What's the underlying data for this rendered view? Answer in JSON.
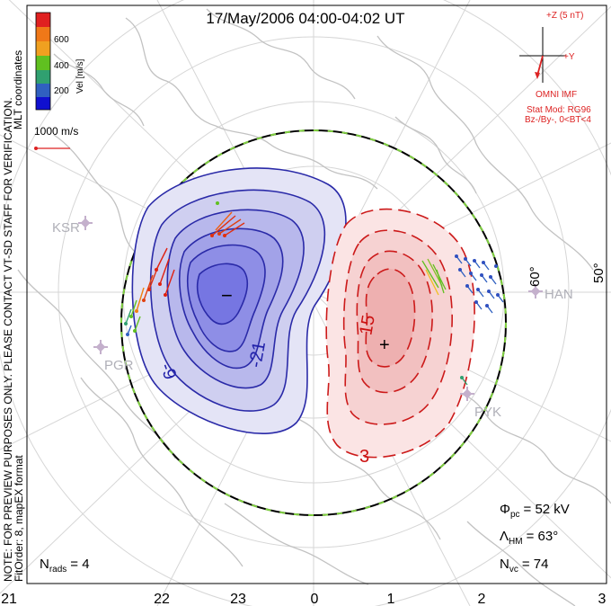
{
  "title": "17/May/2006 04:00-04:02 UT",
  "side_label_1": "MLT coordinates",
  "side_label_2": "NOTE: FOR PREVIEW PURPOSES ONLY. PLEASE CONTACT VT-SD STAFF FOR VERIFICATION.",
  "side_label_3": "FitOrder: 8, mapEX format",
  "velocity_scale": {
    "label": "Vel [m/s]",
    "ticks": [
      "600",
      "400",
      "200"
    ],
    "colors": [
      "#e02020",
      "#f07818",
      "#f0a020",
      "#60c020",
      "#30a070",
      "#3060c0",
      "#1010d0"
    ]
  },
  "reference_vector": {
    "label": "1000 m/s",
    "color": "#dd2222"
  },
  "imf": {
    "z_label": "+Z (5 nT)",
    "y_label": "+Y",
    "source": "OMNI IMF",
    "stat_mod": "Stat Mod: RG96",
    "condition": "Bz-/By-, 0<BT<4",
    "color": "#dd2222"
  },
  "stations": [
    "KSR",
    "PGR",
    "HAN",
    "PYK"
  ],
  "latitude_labels": [
    "60°",
    "50°"
  ],
  "mlt_labels": [
    "21",
    "22",
    "23",
    "0",
    "1",
    "2",
    "3"
  ],
  "contours": {
    "negative_cell": {
      "labels": [
        "-9",
        "-21"
      ],
      "min_marker": "−",
      "color": "#2222aa",
      "fill": "#8a8ae8"
    },
    "positive_cell": {
      "labels": [
        "15",
        "3"
      ],
      "max_marker": "+",
      "color": "#cc1111",
      "fill": "#f0a8a8"
    }
  },
  "stats": {
    "phi_pc_symbol": "Φ",
    "phi_pc_sub": "pc",
    "phi_pc_value": "=  52 kV",
    "lambda_symbol": "Λ",
    "lambda_sub": "HM",
    "lambda_value": "=  63°",
    "nvc_symbol": "N",
    "nvc_sub": "vc",
    "nvc_value": "=  74",
    "nrads_symbol": "N",
    "nrads_sub": "rads",
    "nrads_value": "=  4"
  },
  "colors": {
    "coast": "#c0c0c0",
    "grid": "#d0d0d0",
    "station": "#c0a8c8",
    "hmb": "#000000",
    "hmb_dash": "#80d040"
  }
}
